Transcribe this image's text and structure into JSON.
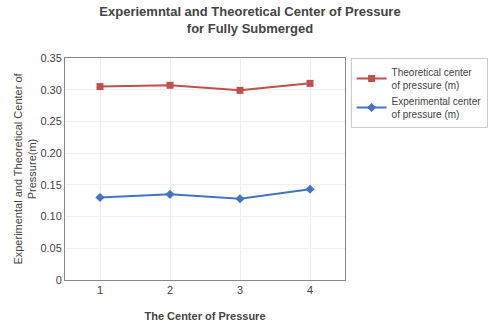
{
  "chart_data": {
    "type": "line",
    "title": "Experiemntal and Theoretical Center of Pressure\nfor Fully Submerged",
    "x_label": "The Center of Pressure",
    "y_label": "Experimental and Theoretical Center of\nPressure(m)",
    "x": [
      1,
      2,
      3,
      4
    ],
    "series": [
      {
        "name": "Theoretical center\nof pressure (m)",
        "color": "#C0504D",
        "marker": "square",
        "line_style": "solid",
        "values": [
          0.305,
          0.307,
          0.299,
          0.31
        ]
      },
      {
        "name": "Experimental center\nof pressure (m)",
        "color": "#4472C4",
        "marker": "diamond",
        "line_style": "solid",
        "values": [
          0.13,
          0.135,
          0.128,
          0.143
        ]
      }
    ],
    "xlim": [
      0.5,
      4.5
    ],
    "xticks": [
      1,
      2,
      3,
      4
    ],
    "ylim": [
      0,
      0.35
    ],
    "yticks": [
      0,
      0.05,
      {
        "value": 0.1,
        "label": "0.10"
      },
      0.15,
      {
        "value": 0.2,
        "label": "0.20"
      },
      0.25,
      {
        "value": 0.3,
        "label": "0.30"
      },
      0.35
    ],
    "grid": true,
    "legend": "upper right"
  }
}
